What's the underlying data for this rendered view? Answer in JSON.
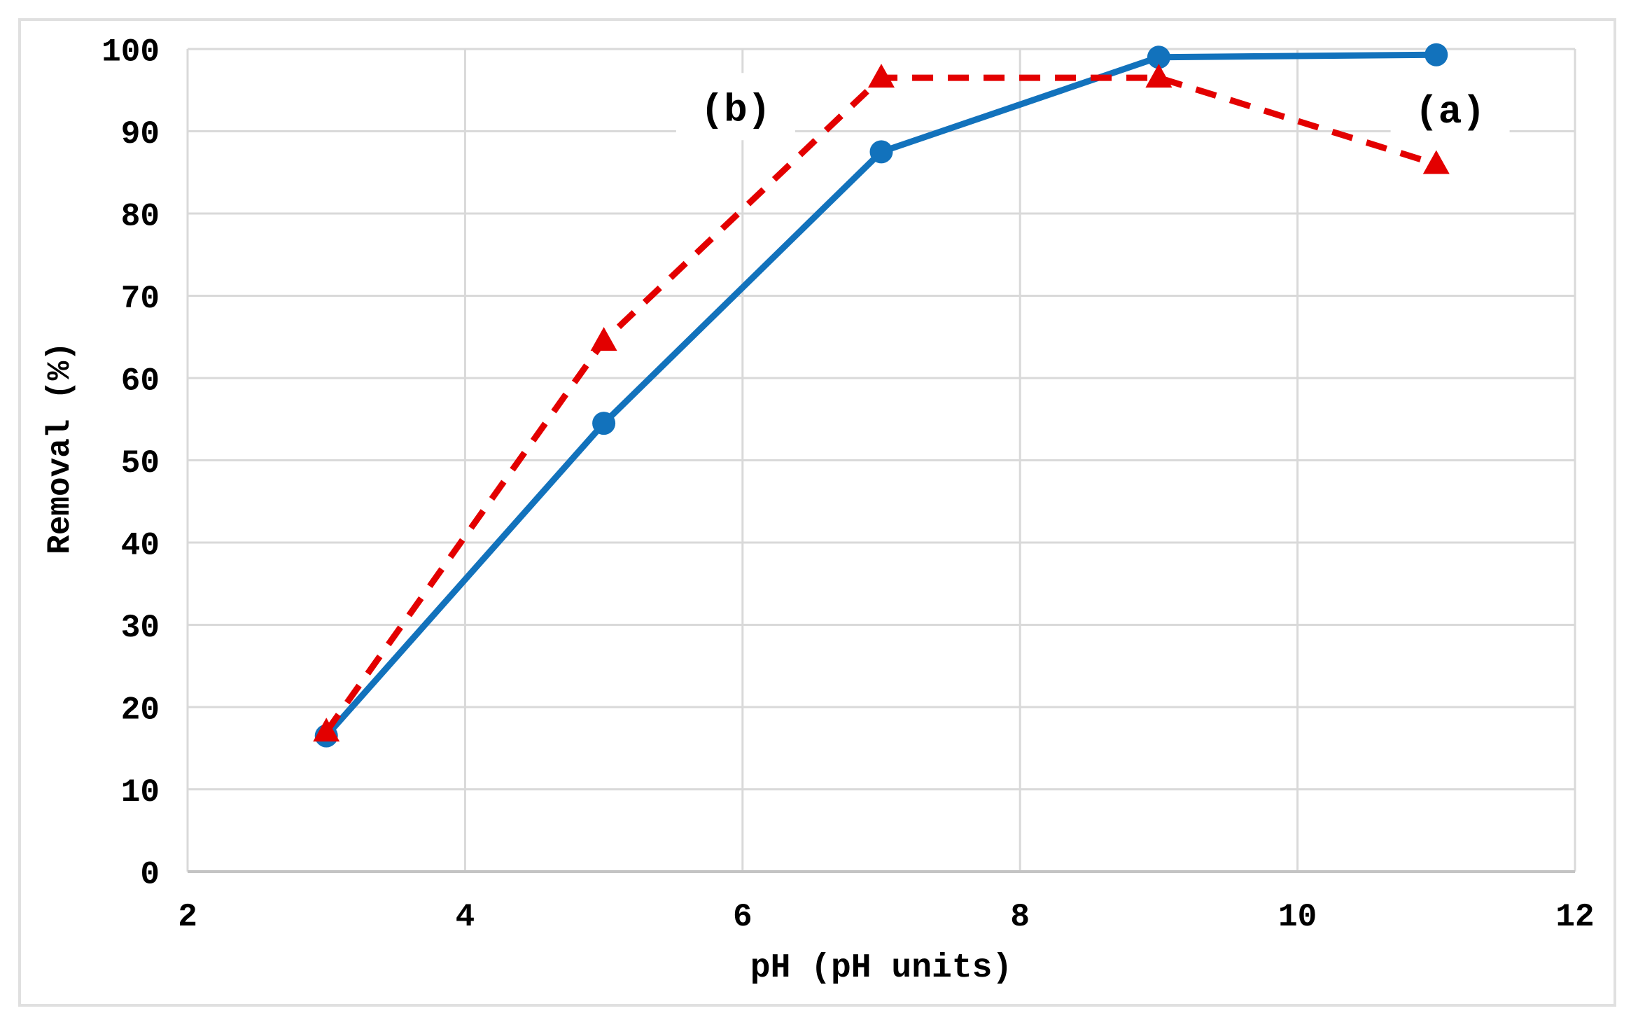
{
  "figure": {
    "background": "#ffffff",
    "border_color": "#e0e0e0"
  },
  "colors": {
    "series_a_blue": "#1272bc",
    "series_b_red": "#e30000",
    "gridline": "#d9d9d9",
    "axis_line": "#c4c4c4",
    "text": "#000000",
    "annotation_box": "#ffffff"
  },
  "chart_data": {
    "type": "line",
    "title": "",
    "xlabel": "pH (pH units)",
    "ylabel": "Removal (%)",
    "xlim": [
      2,
      12
    ],
    "ylim": [
      0,
      100
    ],
    "x_ticks": [
      2,
      4,
      6,
      8,
      10,
      12
    ],
    "y_ticks": [
      0,
      10,
      20,
      30,
      40,
      50,
      60,
      70,
      80,
      90,
      100
    ],
    "grid": true,
    "legend_position": "none",
    "series": [
      {
        "name": "(a)",
        "color": "#1272bc",
        "line_style": "solid",
        "marker": "circle",
        "x": [
          3,
          5,
          7,
          9,
          11
        ],
        "values": [
          16.5,
          54.5,
          87.5,
          99,
          99.3
        ]
      },
      {
        "name": "(b)",
        "color": "#e30000",
        "line_style": "dashed",
        "marker": "triangle-up",
        "x": [
          3,
          5,
          7,
          9,
          11
        ],
        "values": [
          17,
          64.5,
          96.5,
          96.5,
          86
        ]
      }
    ],
    "annotations": [
      {
        "text": "(b)",
        "x": 5.95,
        "y": 93
      },
      {
        "text": "(a)",
        "x": 11.1,
        "y": 92.8
      }
    ]
  }
}
